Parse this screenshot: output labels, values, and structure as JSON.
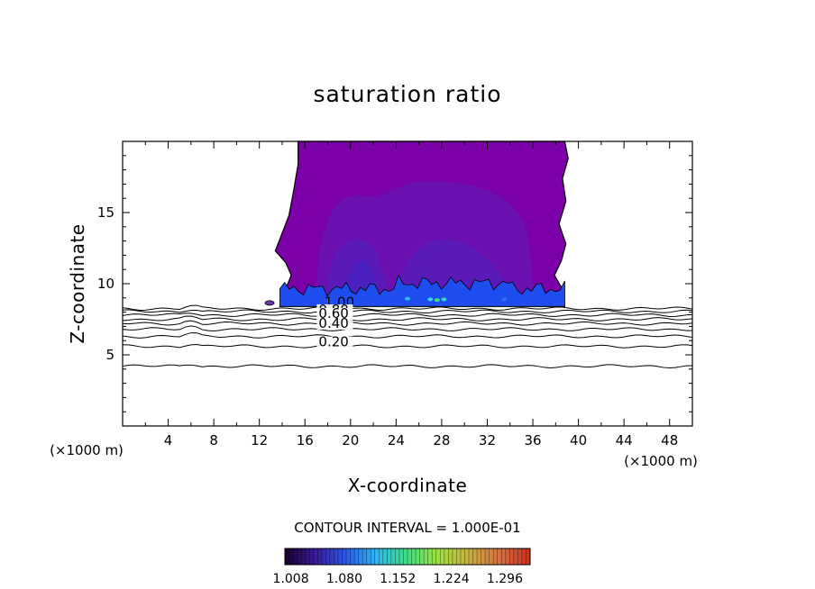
{
  "chart_data": {
    "type": "contour",
    "title": "saturation ratio",
    "xlabel": "X-coordinate",
    "ylabel": "Z-coordinate",
    "x_unit": "(×1000 m)",
    "xlim": [
      0,
      50
    ],
    "ylim": [
      0,
      20
    ],
    "x_ticks": [
      4,
      8,
      12,
      16,
      20,
      24,
      28,
      32,
      36,
      40,
      44,
      48
    ],
    "y_ticks": [
      5,
      10,
      15
    ],
    "contour_interval_text": "CONTOUR INTERVAL = 1.000E-01",
    "contour_levels": [
      0.1,
      0.2,
      0.3,
      0.4,
      0.5,
      0.6,
      0.7,
      0.8,
      0.9,
      1.0
    ],
    "contour_labels": [
      {
        "text": "1.00",
        "level": 1.0
      },
      {
        "text": "0.80",
        "level": 0.8
      },
      {
        "text": "0.60",
        "level": 0.6
      },
      {
        "text": "0.40",
        "level": 0.4
      },
      {
        "text": "0.20",
        "level": 0.2
      }
    ],
    "contour_heights_km": [
      4.2,
      5.6,
      6.3,
      6.8,
      7.2,
      7.5,
      7.8,
      8.05,
      8.25
    ],
    "supersaturated_region": {
      "x_range": [
        13.8,
        38.8
      ],
      "z_base": 8.4,
      "z_top": 20
    },
    "colorbar": {
      "min": 1.0,
      "max": 1.33,
      "tick_labels": [
        "1.008",
        "1.080",
        "1.152",
        "1.224",
        "1.296"
      ],
      "colormap": [
        "#1a0030",
        "#3a1a9a",
        "#2a5ae8",
        "#30b8f0",
        "#40e080",
        "#a0e040",
        "#c8b040",
        "#d87040",
        "#c83020"
      ]
    },
    "colors": {
      "cloud_main": "#7b00a8",
      "cloud_mid": "#6a10b0",
      "cloud_inner": "#5a1ab8",
      "cloud_core": "#4a20c0",
      "cloud_base": "#1e4ef0"
    }
  }
}
